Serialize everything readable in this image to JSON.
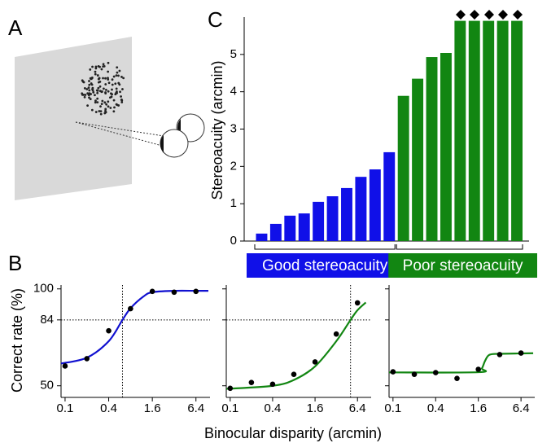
{
  "panel_labels": [
    "A",
    "B",
    "C"
  ],
  "panel_B": {
    "y_label": "Correct rate (%)",
    "x_label": "Binocular disparity (arcmin)"
  },
  "chart_data": [
    {
      "type": "bar",
      "y_label": "Stereoacuity (arcmin)",
      "ylim": [
        0,
        6
      ],
      "yticks": [
        0,
        1,
        2,
        3,
        4,
        5
      ],
      "series": [
        {
          "name": "Good stereoacuity",
          "color": "#1010e8",
          "values": [
            0.2,
            0.46,
            0.68,
            0.74,
            1.05,
            1.2,
            1.42,
            1.72,
            1.92,
            2.38
          ]
        },
        {
          "name": "Poor stereoacuity",
          "color": "#128612",
          "values": [
            3.89,
            4.35,
            4.93,
            5.04,
            5.9,
            5.9,
            5.9,
            5.9,
            5.9
          ]
        }
      ]
    },
    {
      "type": "line",
      "color": "#1010d0",
      "xlog": true,
      "xlim": [
        0.088,
        10
      ],
      "ylim": [
        44,
        102
      ],
      "xticks": [
        0.1,
        0.4,
        1.6,
        6.4
      ],
      "yticks": [
        50,
        84,
        100
      ],
      "tick_labels": true,
      "points": {
        "x": [
          0.1,
          0.2,
          0.4,
          0.8,
          1.6,
          3.2,
          6.4
        ],
        "y": [
          60.2,
          64,
          78.4,
          89.8,
          98.7,
          98.3,
          98.7
        ]
      },
      "fit": {
        "x": [
          0.088,
          0.2,
          0.4,
          0.62,
          0.8,
          1.2,
          1.6,
          3.2,
          6.4,
          9.5
        ],
        "y": [
          61.5,
          64.5,
          73,
          84,
          90,
          96,
          98.3,
          99,
          99,
          99
        ]
      },
      "threshold": {
        "x": 0.62,
        "y": 84
      }
    },
    {
      "type": "line",
      "color": "#128612",
      "xlog": true,
      "xlim": [
        0.088,
        10
      ],
      "ylim": [
        44,
        102
      ],
      "xticks": [
        0.1,
        0.4,
        1.6,
        6.4
      ],
      "yticks": [
        50,
        84,
        100
      ],
      "tick_labels": false,
      "points": {
        "x": [
          0.1,
          0.2,
          0.4,
          0.8,
          1.6,
          3.2,
          6.4
        ],
        "y": [
          48.7,
          51.7,
          50.8,
          55.9,
          62.3,
          76.7,
          92.8
        ]
      },
      "fit": {
        "x": [
          0.088,
          0.4,
          0.8,
          1.6,
          3.2,
          5.1,
          6.4,
          8.4
        ],
        "y": [
          48.4,
          50,
          53,
          60,
          73,
          84,
          89,
          93
        ]
      },
      "threshold": {
        "x": 5.1,
        "y": 84
      }
    },
    {
      "type": "line",
      "color": "#128612",
      "xlog": true,
      "xlim": [
        0.088,
        10
      ],
      "ylim": [
        44,
        102
      ],
      "xticks": [
        0.1,
        0.4,
        1.6,
        6.4
      ],
      "yticks": [
        50,
        84,
        100
      ],
      "tick_labels": false,
      "points": {
        "x": [
          0.1,
          0.2,
          0.4,
          0.8,
          1.6,
          3.2,
          6.4
        ],
        "y": [
          57.2,
          55.9,
          56.8,
          53.8,
          58.5,
          66.1,
          66.9
        ]
      },
      "fit": {
        "x": [
          0.088,
          1.6,
          1.8,
          2.0,
          2.3,
          3.2,
          6.4,
          9.5
        ],
        "y": [
          56.9,
          57,
          59,
          63,
          66,
          66.5,
          66.7,
          66.8
        ]
      }
    }
  ]
}
